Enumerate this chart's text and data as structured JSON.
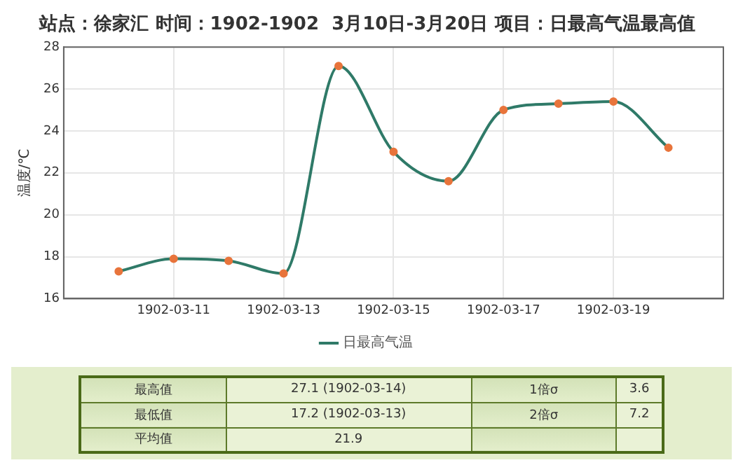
{
  "chart_data": {
    "type": "line",
    "title": "站点：徐家汇 时间：1902-1902  3月10日-3月20日 项目：日最高气温最高值",
    "ylabel": "温度/℃",
    "x": [
      "1902-03-10",
      "1902-03-11",
      "1902-03-12",
      "1902-03-13",
      "1902-03-14",
      "1902-03-15",
      "1902-03-16",
      "1902-03-17",
      "1902-03-18",
      "1902-03-19",
      "1902-03-20"
    ],
    "series": [
      {
        "name": "日最高气温",
        "color": "#2f7a68",
        "values": [
          17.3,
          17.9,
          17.8,
          17.2,
          27.1,
          23.0,
          21.6,
          25.0,
          25.3,
          25.4,
          23.2
        ]
      }
    ],
    "xlim": [
      "1902-03-09",
      "1902-03-21"
    ],
    "xticks": [
      "1902-03-11",
      "1902-03-13",
      "1902-03-15",
      "1902-03-17",
      "1902-03-19"
    ],
    "ylim": [
      16,
      28
    ],
    "yticks": [
      16,
      18,
      20,
      22,
      24,
      26,
      28
    ],
    "grid": true,
    "legend": "bottom",
    "marker": "circle",
    "line_style": "solid",
    "annotations": [
      "最高值",
      "27.1 (1902-03-14)",
      "1倍σ",
      "3.6",
      "最低值",
      "17.2 (1902-03-13)",
      "2倍σ",
      "7.2",
      "平均值",
      "21.9"
    ]
  }
}
